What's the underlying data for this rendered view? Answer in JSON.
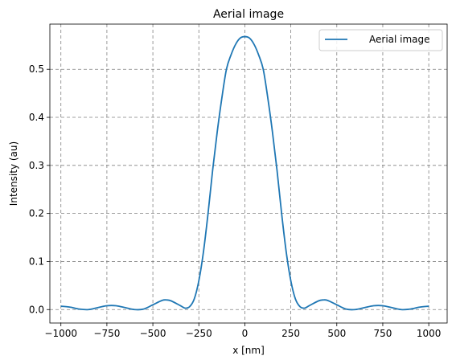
{
  "chart_data": {
    "type": "line",
    "title": "Aerial image",
    "xlabel": "x [nm]",
    "ylabel": "Intensity (au)",
    "xlim": [
      -1060,
      1100
    ],
    "ylim": [
      -0.028,
      0.594
    ],
    "xticks": [
      -1000,
      -750,
      -500,
      -250,
      0,
      250,
      500,
      750,
      1000
    ],
    "xtick_labels": [
      "−1000",
      "−750",
      "−500",
      "−250",
      "0",
      "250",
      "500",
      "750",
      "1000"
    ],
    "yticks": [
      0.0,
      0.1,
      0.2,
      0.3,
      0.4,
      0.5
    ],
    "ytick_labels": [
      "0.0",
      "0.1",
      "0.2",
      "0.3",
      "0.4",
      "0.5"
    ],
    "grid": true,
    "legend": "top-right",
    "series": [
      {
        "name": "Aerial image",
        "color": "#1f77b4",
        "x": [
          -1000,
          -950,
          -900,
          -850,
          -800,
          -750,
          -700,
          -650,
          -600,
          -550,
          -500,
          -450,
          -425,
          -400,
          -350,
          -325,
          -300,
          -275,
          -250,
          -225,
          -200,
          -175,
          -150,
          -125,
          -100,
          -75,
          -50,
          -25,
          0,
          25,
          50,
          75,
          100,
          125,
          150,
          175,
          200,
          225,
          250,
          275,
          300,
          325,
          350,
          400,
          425,
          450,
          500,
          550,
          600,
          650,
          700,
          750,
          800,
          850,
          900,
          950,
          1000
        ],
        "y": [
          0.007,
          0.005,
          0.001,
          0.0,
          0.004,
          0.008,
          0.008,
          0.004,
          0.0,
          0.001,
          0.01,
          0.019,
          0.02,
          0.018,
          0.008,
          0.003,
          0.006,
          0.022,
          0.06,
          0.12,
          0.2,
          0.29,
          0.37,
          0.44,
          0.5,
          0.53,
          0.552,
          0.565,
          0.568,
          0.565,
          0.552,
          0.53,
          0.5,
          0.44,
          0.37,
          0.29,
          0.2,
          0.12,
          0.06,
          0.022,
          0.006,
          0.003,
          0.008,
          0.018,
          0.02,
          0.019,
          0.01,
          0.001,
          0.0,
          0.004,
          0.008,
          0.008,
          0.004,
          0.0,
          0.001,
          0.005,
          0.007
        ]
      }
    ]
  }
}
